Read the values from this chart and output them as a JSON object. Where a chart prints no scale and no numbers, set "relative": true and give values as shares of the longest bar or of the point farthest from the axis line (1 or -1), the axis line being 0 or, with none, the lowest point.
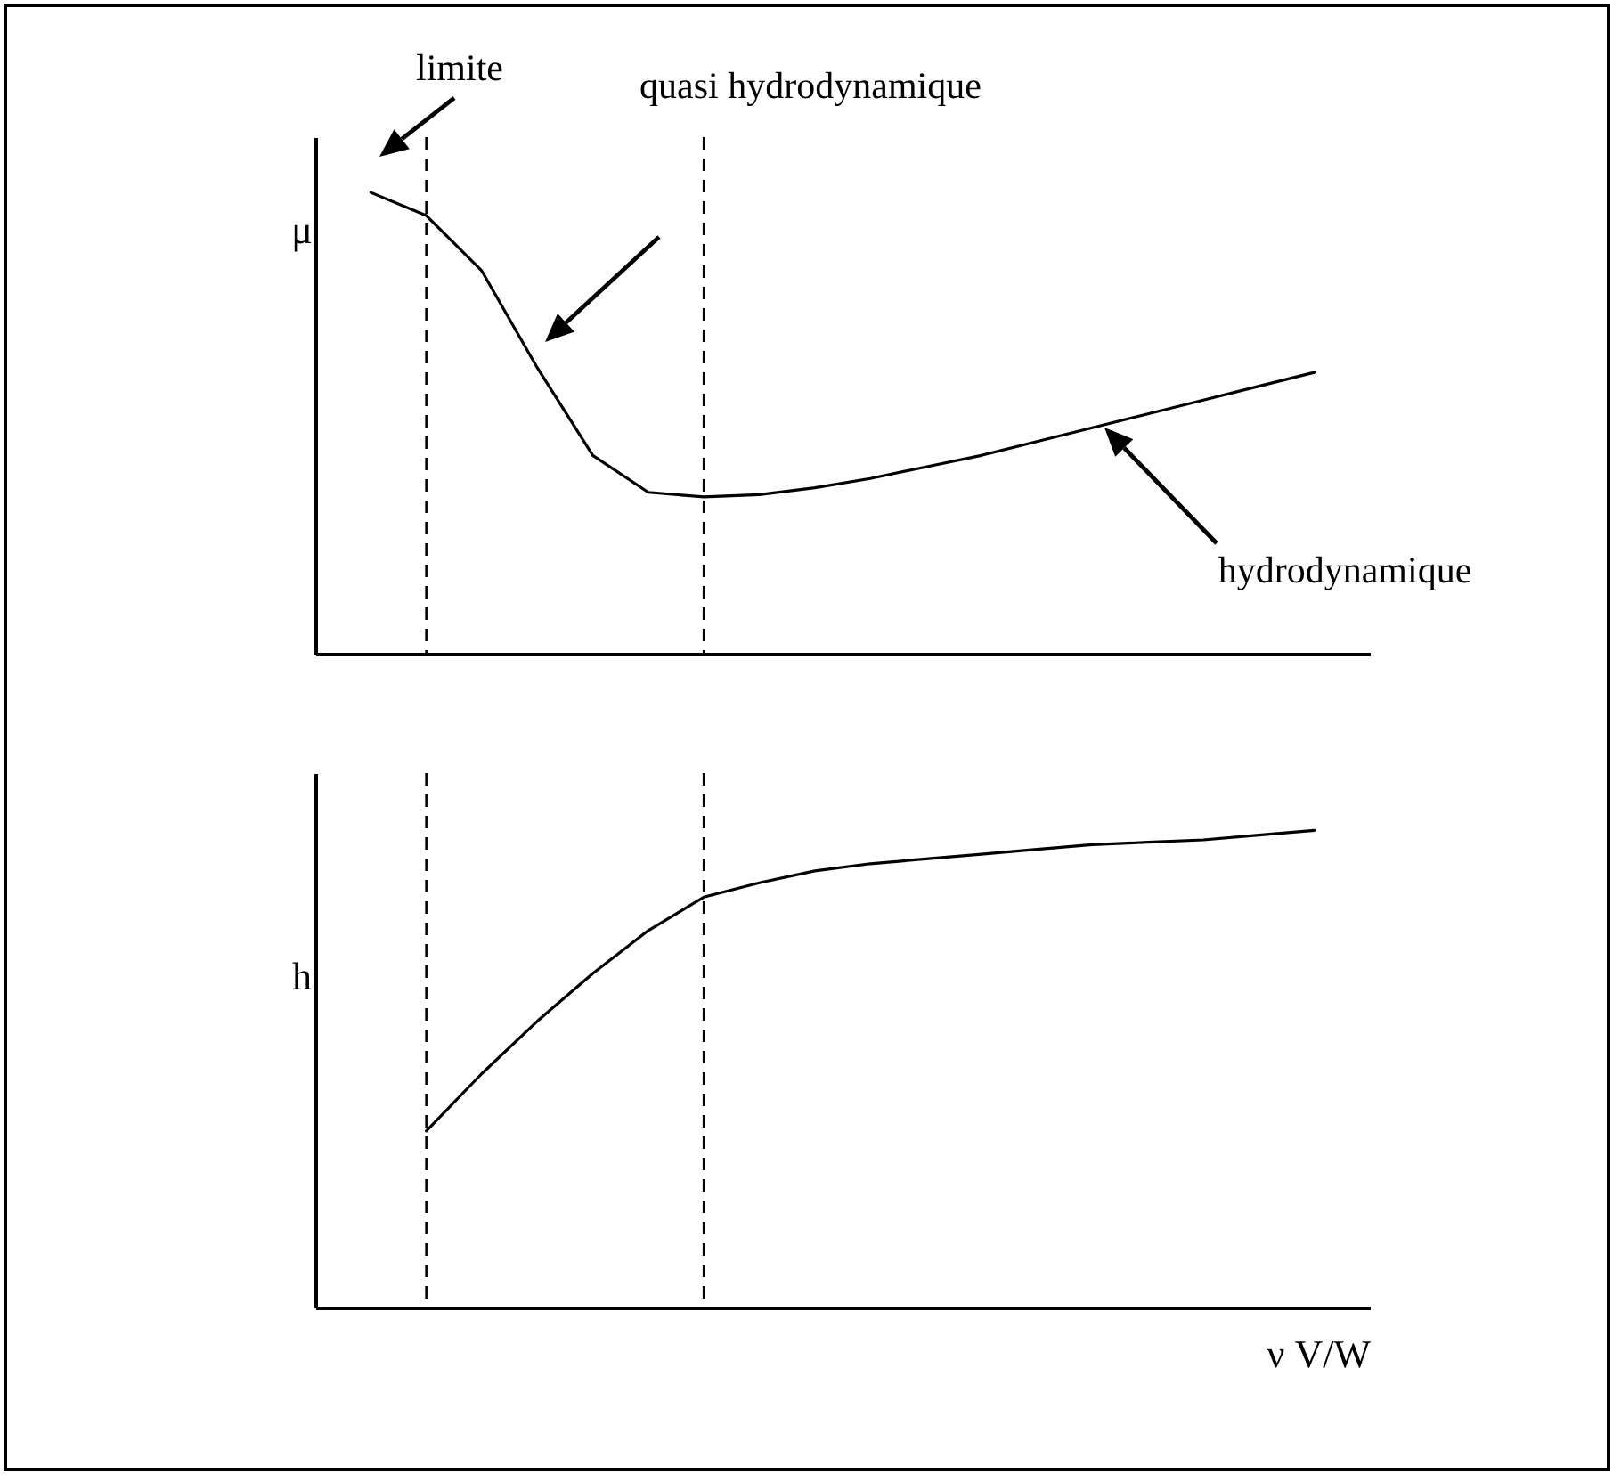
{
  "chart_data": [
    {
      "type": "line",
      "relative": true,
      "ylabel": "μ",
      "color": "#000000",
      "categories": [
        null,
        null,
        null,
        null,
        null,
        null,
        null,
        null,
        null,
        null,
        null,
        null,
        null,
        null,
        null,
        null,
        null,
        null
      ],
      "values": [
        1.0,
        0.95,
        0.83,
        0.62,
        0.43,
        0.35,
        0.34,
        0.345,
        0.36,
        0.38,
        0.405,
        0.43,
        0.46,
        0.49,
        0.52,
        0.55,
        0.58,
        0.61
      ],
      "annotations": [
        "limite",
        "quasi hydrodynamique",
        "hydrodynamique"
      ]
    },
    {
      "type": "line",
      "relative": true,
      "ylabel": "h",
      "xlabel": "ν V/W",
      "color": "#000000",
      "categories": [
        null,
        null,
        null,
        null,
        null,
        null,
        null,
        null,
        null,
        null,
        null,
        null,
        null,
        null,
        null,
        null,
        null,
        null
      ],
      "values": [
        null,
        0.37,
        0.49,
        0.6,
        0.7,
        0.79,
        0.86,
        0.89,
        0.915,
        0.93,
        0.94,
        0.95,
        0.96,
        0.97,
        0.975,
        0.98,
        0.99,
        1.0
      ]
    }
  ]
}
